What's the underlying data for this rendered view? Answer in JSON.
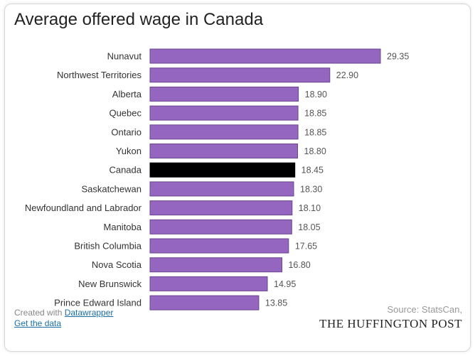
{
  "chart_data": {
    "type": "bar",
    "orientation": "horizontal",
    "title": "Average offered wage in Canada",
    "categories": [
      "Nunavut",
      "Northwest Territories",
      "Alberta",
      "Quebec",
      "Ontario",
      "Yukon",
      "Canada",
      "Saskatchewan",
      "Newfoundland and Labrador",
      "Manitoba",
      "British Columbia",
      "Nova Scotia",
      "New Brunswick",
      "Prince Edward Island"
    ],
    "values": [
      29.35,
      22.9,
      18.9,
      18.85,
      18.85,
      18.8,
      18.45,
      18.3,
      18.1,
      18.05,
      17.65,
      16.8,
      14.95,
      13.85
    ],
    "value_labels": [
      "29.35",
      "22.90",
      "18.90",
      "18.85",
      "18.85",
      "18.80",
      "18.45",
      "18.30",
      "18.10",
      "18.05",
      "17.65",
      "16.80",
      "14.95",
      "13.85"
    ],
    "highlight_category": "Canada",
    "xlim": [
      0,
      29.35
    ],
    "grid": false,
    "colors": {
      "bar": "#9466c0",
      "highlight": "#000000",
      "bar_border": "#6b4590"
    }
  },
  "footer": {
    "created_with_prefix": "Created with ",
    "created_with_link": "Datawrapper",
    "get_data_link": "Get the data",
    "source": "Source: StatsCan,",
    "brand": "THE HUFFINGTON POST"
  }
}
